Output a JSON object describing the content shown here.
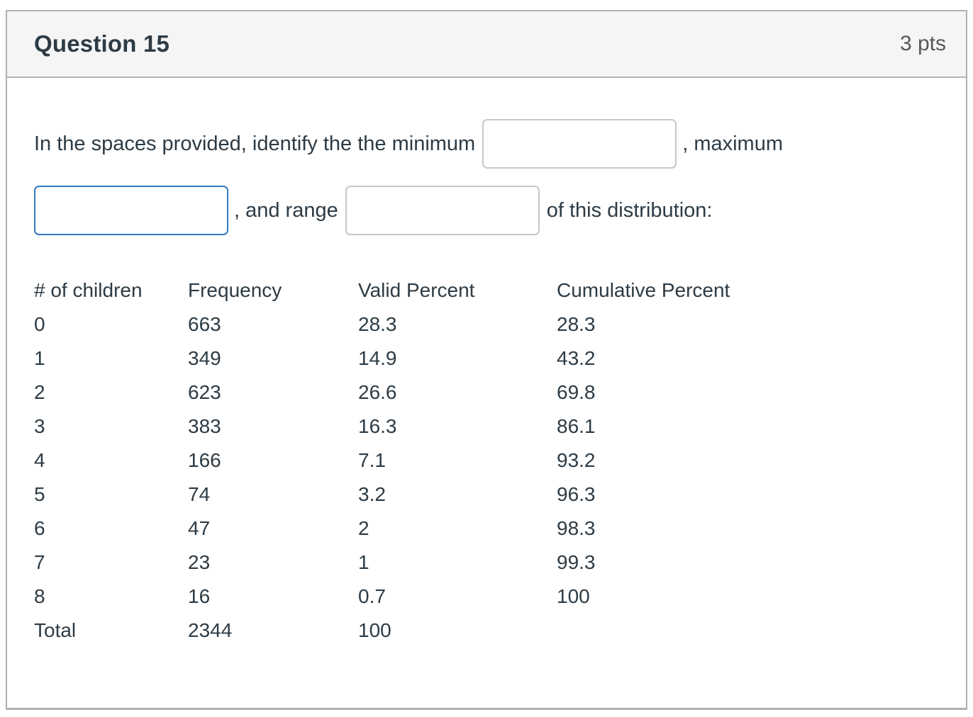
{
  "header": {
    "title": "Question 15",
    "points": "3 pts"
  },
  "question": {
    "intro_text": "In the spaces provided, identify the the minimum",
    "after_minimum": ", maximum",
    "after_maximum": ", and range",
    "after_range": "of this distribution:",
    "blanks": [
      {
        "name": "minimum",
        "value": "",
        "state": "default"
      },
      {
        "name": "maximum",
        "value": "",
        "state": "focused"
      },
      {
        "name": "range",
        "value": "",
        "state": "default"
      }
    ]
  },
  "table": {
    "columns": [
      "# of children",
      "Frequency",
      "Valid Percent",
      "Cumulative Percent"
    ],
    "rows": [
      [
        "0",
        "663",
        "28.3",
        "28.3"
      ],
      [
        "1",
        "349",
        "14.9",
        "43.2"
      ],
      [
        "2",
        "623",
        "26.6",
        "69.8"
      ],
      [
        "3",
        "383",
        "16.3",
        "86.1"
      ],
      [
        "4",
        "166",
        "7.1",
        "93.2"
      ],
      [
        "5",
        "74",
        "3.2",
        "96.3"
      ],
      [
        "6",
        "47",
        "2",
        "98.3"
      ],
      [
        "7",
        "23",
        "1",
        "99.3"
      ],
      [
        "8",
        "16",
        "0.7",
        "100"
      ],
      [
        "Total",
        "2344",
        "100",
        ""
      ]
    ]
  },
  "colors": {
    "text": "#2d3b45",
    "points_text": "#55595c",
    "header_background": "#f5f5f5",
    "card_border": "#aeb1b3",
    "input_border": "#c8c8c8",
    "input_border_focused": "#357abd"
  }
}
